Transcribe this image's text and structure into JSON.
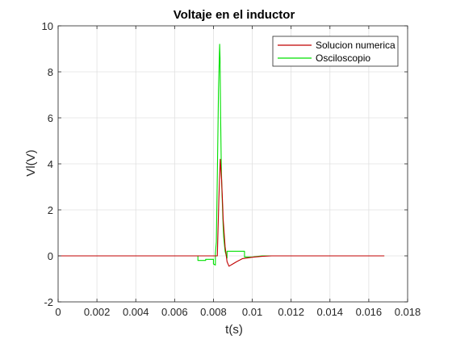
{
  "chart_data": {
    "type": "line",
    "title": "Voltaje en el inductor",
    "xlabel": "t(s)",
    "ylabel": "Vl(V)",
    "xlim": [
      0,
      0.018
    ],
    "ylim": [
      -2,
      10
    ],
    "xticks": [
      0,
      0.002,
      0.004,
      0.006,
      0.008,
      0.01,
      0.012,
      0.014,
      0.016,
      0.018
    ],
    "xtick_labels": [
      "0",
      "0.002",
      "0.004",
      "0.006",
      "0.008",
      "0.01",
      "0.012",
      "0.014",
      "0.016",
      "0.018"
    ],
    "yticks": [
      -2,
      0,
      2,
      4,
      6,
      8,
      10
    ],
    "ytick_labels": [
      "-2",
      "0",
      "2",
      "4",
      "6",
      "8",
      "10"
    ],
    "grid": true,
    "legend_position": "top-right",
    "series": [
      {
        "name": "Solucion numerica",
        "color": "#c00000",
        "x": [
          0,
          0.0082,
          0.00828,
          0.00835,
          0.00842,
          0.00848,
          0.0085,
          0.00855,
          0.0086,
          0.0087,
          0.0088,
          0.009,
          0.0092,
          0.0095,
          0.01,
          0.0105,
          0.011,
          0.012,
          0.0168
        ],
        "y": [
          0,
          0,
          2.5,
          4.2,
          3.3,
          2.1,
          1.6,
          1.0,
          0.4,
          -0.25,
          -0.45,
          -0.35,
          -0.25,
          -0.12,
          -0.06,
          -0.02,
          0,
          0,
          0
        ]
      },
      {
        "name": "Osciloscopio",
        "color": "#00e000",
        "x": [
          0,
          0.0072,
          0.0072,
          0.0076,
          0.0076,
          0.008,
          0.008,
          0.0081,
          0.0081,
          0.00815,
          0.0082,
          0.00826,
          0.00832,
          0.00834,
          0.00837,
          0.0084,
          0.00843,
          0.00847,
          0.0085,
          0.00853,
          0.0086,
          0.0087,
          0.0087,
          0.0096,
          0.0096,
          0.01,
          0.0105,
          0.011,
          0.0168
        ],
        "y": [
          0,
          0,
          -0.2,
          -0.2,
          -0.15,
          -0.15,
          -0.35,
          -0.4,
          0.1,
          0.6,
          3.5,
          7.2,
          9.2,
          8.6,
          6.0,
          4.1,
          3.0,
          2.0,
          1.3,
          0.8,
          0.2,
          -0.1,
          0.2,
          0.2,
          -0.05,
          -0.05,
          0,
          0,
          0
        ]
      }
    ]
  }
}
